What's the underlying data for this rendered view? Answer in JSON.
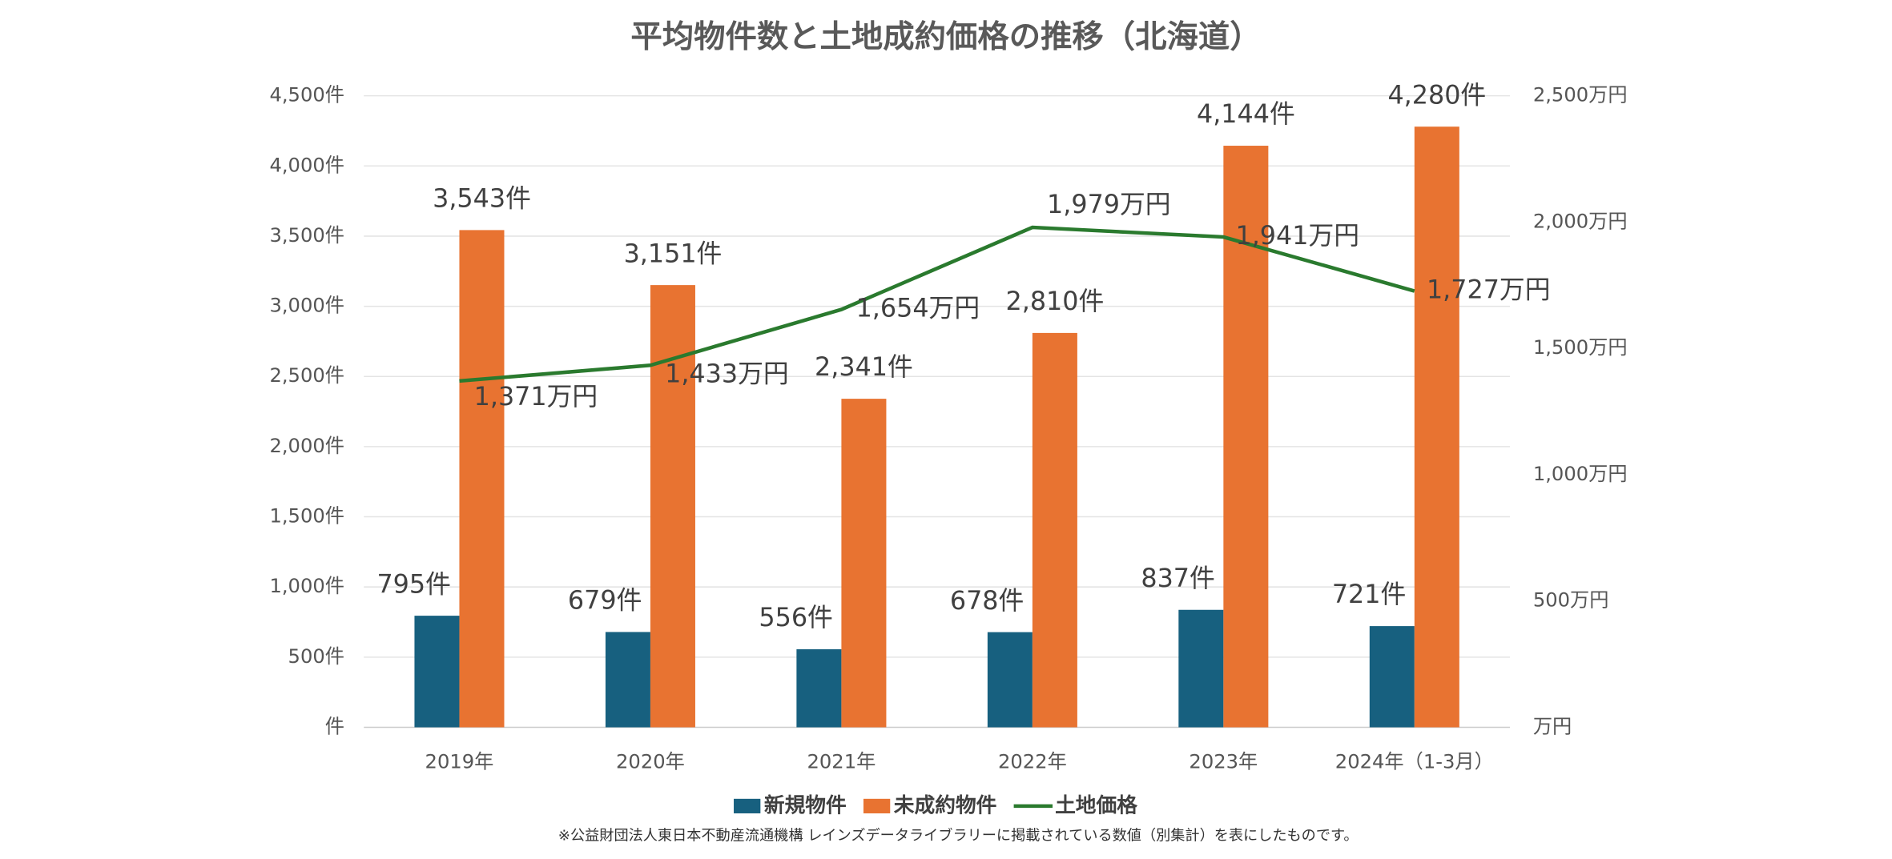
{
  "chart_data": {
    "type": "bar",
    "title": "平均物件数と土地成約価格の推移（北海道）",
    "footnote": "※公益財団法人東日本不動産流通機構 レインズデータライブラリーに掲載されている数値（別集計）を表にしたものです。",
    "categories": [
      "2019年",
      "2020年",
      "2021年",
      "2022年",
      "2023年",
      "2024年（1-3月）"
    ],
    "series": [
      {
        "name": "新規物件",
        "color": "#17607f",
        "values": [
          795,
          679,
          556,
          678,
          837,
          721
        ],
        "value_labels": [
          "795件",
          "679件",
          "556件",
          "678件",
          "837件",
          "721件"
        ]
      },
      {
        "name": "未成約物件",
        "color": "#e87331",
        "values": [
          3543,
          3151,
          2341,
          2810,
          4144,
          4280
        ],
        "value_labels": [
          "3,543件",
          "3,151件",
          "2,341件",
          "2,810件",
          "4,144件",
          "4,280件"
        ]
      },
      {
        "name": "土地価格",
        "type": "line",
        "axis": "y2",
        "color": "#2a7a2e",
        "values": [
          1371,
          1433,
          1654,
          1979,
          1941,
          1727
        ],
        "value_labels": [
          "1,371万円",
          "1,433万円",
          "1,654万円",
          "1,979万円",
          "1,941万円",
          "1,727万円"
        ]
      }
    ],
    "ylim": [
      0,
      4500
    ],
    "yticks": [
      {
        "value": 0,
        "label": "件"
      },
      {
        "value": 500,
        "label": "500件"
      },
      {
        "value": 1000,
        "label": "1,000件"
      },
      {
        "value": 1500,
        "label": "1,500件"
      },
      {
        "value": 2000,
        "label": "2,000件"
      },
      {
        "value": 2500,
        "label": "2,500件"
      },
      {
        "value": 3000,
        "label": "3,000件"
      },
      {
        "value": 3500,
        "label": "3,500件"
      },
      {
        "value": 4000,
        "label": "4,000件"
      },
      {
        "value": 4500,
        "label": "4,500件"
      }
    ],
    "y2lim": [
      0,
      2500
    ],
    "y2ticks": [
      {
        "value": 0,
        "label": "万円"
      },
      {
        "value": 500,
        "label": "500万円"
      },
      {
        "value": 1000,
        "label": "1,000万円"
      },
      {
        "value": 1500,
        "label": "1,500万円"
      },
      {
        "value": 2000,
        "label": "2,000万円"
      },
      {
        "value": 2500,
        "label": "2,500万円"
      }
    ],
    "grid": true,
    "legend": "bottom"
  }
}
